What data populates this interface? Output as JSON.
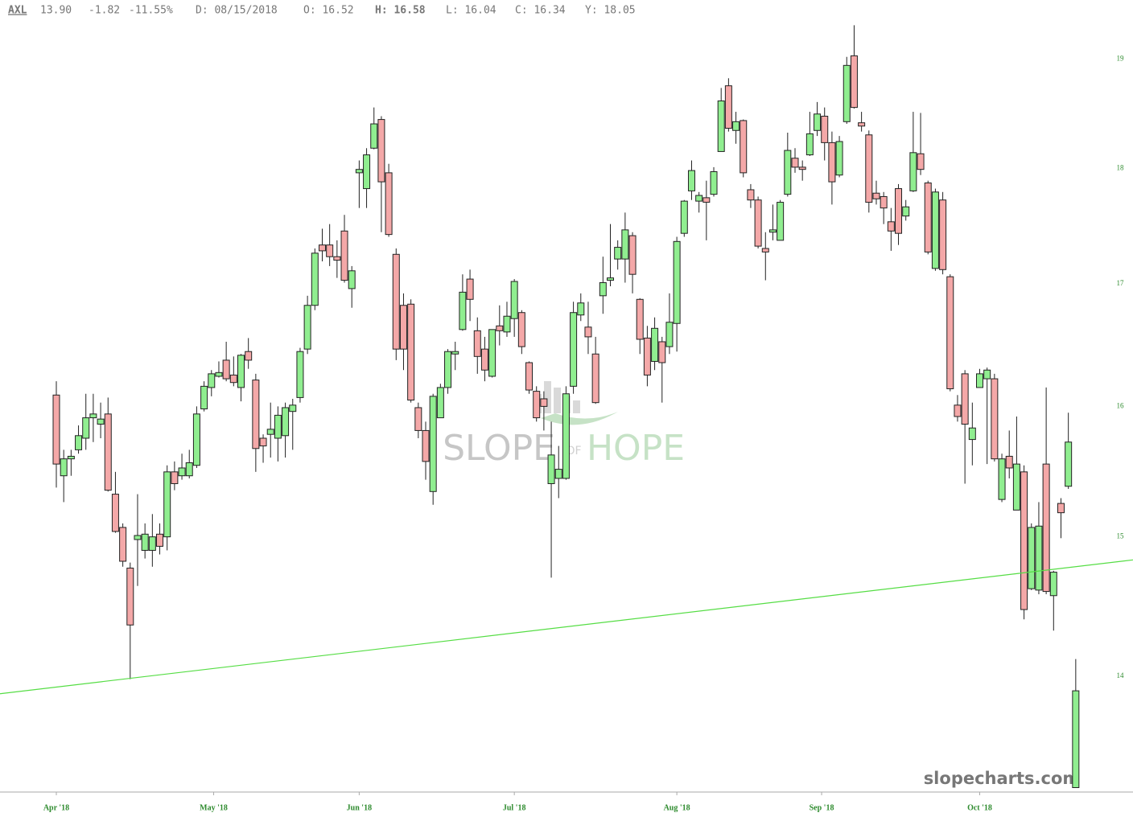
{
  "chart_data": {
    "type": "candlestick",
    "symbol": "AXL",
    "quote": [
      "13.90",
      "-1.82",
      "-11.55%"
    ],
    "readout": [
      "D: 08/15/2018",
      "O: 16.52",
      "H: 16.58",
      "L: 16.04",
      "C: 16.34",
      "Y: 18.05"
    ],
    "watermark": [
      "SLOPE",
      "OF",
      "HOPE"
    ],
    "source": "slopecharts.com",
    "log_scale": true,
    "grid": false,
    "ylim": [
      13.2,
      19.4
    ],
    "yticks": [
      19,
      18,
      17,
      16,
      15,
      14
    ],
    "xlim": [
      -7.63,
      145.75
    ],
    "xticks": [
      {
        "value": 0,
        "label": "Apr '18"
      },
      {
        "value": 21.3,
        "label": "May '18"
      },
      {
        "value": 41,
        "label": "Jun '18"
      },
      {
        "value": 62,
        "label": "Jul '18"
      },
      {
        "value": 84,
        "label": "Aug '18"
      },
      {
        "value": 103.6,
        "label": "Sep '18"
      },
      {
        "value": 125,
        "label": "Oct '18"
      }
    ],
    "up_color": "#90ee90",
    "down_color": "#f4a8a8",
    "axis_label_color": "#2e8b2e",
    "trendline": {
      "x": [
        -7.63,
        145.75
      ],
      "y": [
        13.88,
        14.83
      ],
      "color": "#55dd44"
    },
    "open": [
      16.09,
      15.46,
      15.59,
      15.66,
      15.75,
      15.91,
      15.86,
      15.94,
      15.32,
      15.07,
      14.77,
      14.98,
      14.9,
      14.9,
      15.02,
      15.0,
      15.49,
      15.46,
      15.46,
      15.54,
      15.98,
      16.15,
      16.24,
      16.37,
      16.25,
      16.15,
      16.44,
      16.21,
      15.75,
      15.78,
      15.75,
      15.77,
      15.96,
      16.07,
      16.46,
      16.82,
      17.33,
      17.33,
      17.23,
      17.45,
      16.96,
      17.96,
      17.82,
      18.18,
      18.44,
      17.96,
      17.25,
      16.82,
      16.83,
      15.99,
      15.81,
      15.34,
      15.91,
      16.15,
      16.42,
      16.62,
      17.04,
      16.61,
      16.46,
      16.24,
      16.65,
      16.6,
      16.71,
      16.76,
      16.35,
      16.12,
      16.06,
      15.4,
      15.44,
      15.44,
      16.16,
      16.74,
      16.64,
      16.42,
      16.9,
      17.03,
      17.21,
      17.21,
      17.41,
      16.87,
      16.55,
      16.36,
      16.52,
      16.48,
      16.67,
      17.43,
      17.8,
      17.71,
      17.74,
      17.77,
      18.15,
      18.75,
      18.34,
      18.43,
      17.81,
      17.72,
      17.3,
      17.44,
      17.37,
      17.77,
      18.09,
      18.01,
      18.12,
      18.34,
      18.47,
      18.23,
      17.94,
      18.42,
      19.03,
      18.41,
      18.3,
      17.78,
      17.75,
      17.53,
      17.82,
      17.58,
      17.8,
      18.13,
      17.87,
      17.13,
      17.72,
      17.06,
      16.01,
      16.26,
      15.74,
      16.15,
      16.22,
      16.22,
      15.28,
      15.61,
      15.2,
      15.49,
      14.62,
      14.61,
      15.55,
      14.57,
      15.25,
      15.38,
      13.25
    ],
    "high": [
      16.2,
      15.66,
      15.66,
      15.85,
      16.1,
      16.1,
      16.03,
      16.07,
      15.49,
      15.1,
      14.81,
      15.32,
      15.1,
      15.17,
      15.1,
      15.54,
      15.57,
      15.63,
      15.66,
      16.0,
      16.2,
      16.29,
      16.36,
      16.52,
      16.4,
      16.42,
      16.55,
      16.26,
      15.78,
      16.03,
      16.0,
      16.03,
      16.06,
      16.47,
      16.9,
      17.3,
      17.47,
      17.51,
      17.37,
      17.59,
      17.15,
      18.07,
      18.18,
      18.55,
      18.47,
      18.04,
      17.3,
      16.92,
      16.87,
      16.03,
      15.88,
      16.1,
      16.18,
      16.46,
      16.52,
      17.08,
      17.12,
      16.72,
      16.56,
      16.62,
      16.82,
      16.85,
      17.04,
      16.78,
      16.36,
      16.16,
      16.12,
      15.88,
      15.69,
      16.16,
      16.85,
      16.92,
      16.85,
      16.56,
      17.23,
      17.51,
      17.37,
      17.61,
      17.44,
      16.88,
      16.65,
      16.72,
      16.56,
      16.92,
      17.4,
      17.72,
      18.07,
      17.79,
      17.89,
      18.01,
      18.73,
      18.82,
      18.51,
      18.44,
      17.86,
      17.75,
      17.44,
      17.68,
      17.72,
      18.32,
      18.18,
      18.07,
      18.51,
      18.6,
      18.55,
      18.33,
      18.29,
      19.02,
      19.32,
      18.51,
      18.34,
      17.89,
      17.79,
      17.65,
      17.86,
      17.72,
      18.51,
      18.5,
      17.89,
      17.82,
      17.79,
      17.08,
      16.09,
      16.29,
      16.03,
      16.3,
      16.31,
      16.26,
      15.63,
      15.81,
      15.92,
      15.54,
      15.1,
      15.26,
      16.15,
      14.75,
      15.29,
      15.95,
      14.12
    ],
    "low": [
      15.37,
      15.26,
      15.46,
      15.63,
      15.66,
      15.72,
      15.75,
      15.34,
      15.03,
      14.78,
      13.98,
      14.64,
      14.84,
      14.78,
      14.87,
      14.9,
      15.35,
      15.43,
      15.44,
      15.52,
      15.96,
      16.08,
      16.23,
      16.2,
      16.16,
      16.04,
      16.3,
      15.49,
      15.56,
      15.6,
      15.57,
      15.6,
      15.66,
      16.03,
      16.42,
      16.78,
      17.19,
      17.15,
      17.05,
      17.01,
      16.8,
      17.65,
      17.65,
      18.17,
      17.44,
      17.4,
      16.37,
      16.29,
      16.03,
      15.75,
      15.43,
      15.24,
      15.91,
      16.1,
      16.29,
      16.61,
      16.69,
      16.26,
      16.2,
      16.23,
      16.49,
      16.56,
      16.56,
      16.42,
      16.1,
      15.88,
      15.81,
      14.7,
      15.29,
      15.43,
      16.1,
      16.69,
      16.42,
      16.02,
      16.75,
      16.98,
      17.12,
      17.01,
      16.92,
      16.42,
      16.16,
      16.29,
      16.03,
      16.42,
      16.44,
      17.4,
      17.72,
      17.61,
      17.37,
      17.75,
      18.15,
      18.33,
      18.22,
      17.92,
      17.65,
      17.3,
      17.03,
      17.37,
      17.37,
      17.75,
      17.96,
      17.89,
      18.11,
      18.29,
      18.07,
      17.68,
      17.92,
      18.4,
      18.54,
      18.33,
      17.61,
      17.68,
      17.51,
      17.28,
      17.33,
      17.54,
      17.79,
      17.94,
      17.25,
      17.11,
      17.08,
      16.12,
      15.88,
      15.4,
      15.54,
      16.15,
      15.55,
      15.57,
      15.26,
      15.44,
      15.2,
      14.4,
      14.61,
      14.58,
      14.58,
      14.32,
      14.99,
      15.36,
      13.25
    ],
    "close": [
      15.55,
      15.59,
      15.61,
      15.77,
      15.91,
      15.94,
      15.9,
      15.35,
      15.04,
      14.82,
      14.36,
      15.01,
      15.02,
      15.0,
      14.93,
      15.49,
      15.4,
      15.52,
      15.56,
      15.94,
      16.16,
      16.26,
      16.27,
      16.22,
      16.19,
      16.41,
      16.37,
      15.67,
      15.69,
      15.82,
      15.93,
      15.99,
      16.01,
      16.44,
      16.82,
      17.26,
      17.28,
      17.23,
      17.2,
      17.03,
      17.11,
      17.99,
      18.12,
      18.4,
      17.88,
      17.42,
      16.46,
      16.46,
      16.05,
      15.81,
      15.57,
      16.08,
      16.15,
      16.44,
      16.44,
      16.93,
      16.87,
      16.4,
      16.29,
      16.62,
      16.61,
      16.73,
      17.02,
      16.48,
      16.13,
      15.91,
      16.0,
      15.62,
      15.51,
      16.1,
      16.76,
      16.84,
      16.56,
      16.03,
      17.01,
      17.05,
      17.31,
      17.46,
      17.08,
      16.54,
      16.25,
      16.63,
      16.35,
      16.68,
      17.36,
      17.71,
      17.98,
      17.76,
      17.7,
      17.97,
      18.61,
      18.36,
      18.42,
      17.96,
      17.72,
      17.32,
      17.27,
      17.46,
      17.7,
      18.16,
      18.01,
      17.99,
      18.31,
      18.49,
      18.23,
      17.88,
      18.24,
      18.94,
      18.55,
      18.38,
      17.7,
      17.73,
      17.65,
      17.45,
      17.43,
      17.66,
      18.14,
      17.99,
      17.27,
      17.79,
      17.12,
      16.14,
      15.92,
      15.86,
      15.83,
      16.26,
      16.29,
      15.59,
      15.59,
      15.52,
      15.55,
      14.47,
      15.07,
      15.08,
      14.6,
      14.74,
      15.18,
      15.72,
      13.9
    ]
  }
}
